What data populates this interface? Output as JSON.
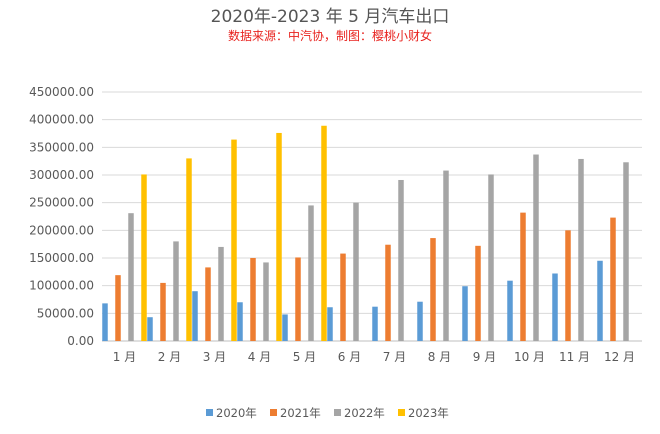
{
  "chart_data": {
    "type": "bar",
    "title": "2020年-2023 年 5 月汽车出口",
    "subtitle": "数据来源：中汽协，制图：樱桃小财女",
    "categories": [
      "1 月",
      "2 月",
      "3 月",
      "4 月",
      "5 月",
      "6 月",
      "7 月",
      "8 月",
      "9 月",
      "10 月",
      "11 月",
      "12 月"
    ],
    "ylim": [
      0,
      450000
    ],
    "yticks": [
      "0.00",
      "50000.00",
      "100000.00",
      "150000.00",
      "200000.00",
      "250000.00",
      "300000.00",
      "350000.00",
      "400000.00",
      "450000.00"
    ],
    "grid": true,
    "legend_position": "bottom",
    "series": [
      {
        "name": "2020年",
        "color": "#5b9bd5",
        "values": [
          68000,
          43000,
          90000,
          70000,
          48000,
          61000,
          62000,
          71000,
          99000,
          109000,
          122000,
          145000
        ]
      },
      {
        "name": "2021年",
        "color": "#ed7d31",
        "values": [
          119000,
          105000,
          133000,
          150000,
          151000,
          158000,
          174000,
          186000,
          172000,
          232000,
          200000,
          223000
        ]
      },
      {
        "name": "2022年",
        "color": "#a5a5a5",
        "values": [
          231000,
          180000,
          170000,
          142000,
          245000,
          250000,
          291000,
          308000,
          301000,
          337000,
          329000,
          323000
        ]
      },
      {
        "name": "2023年",
        "color": "#ffc000",
        "values": [
          301000,
          330000,
          364000,
          376000,
          389000,
          null,
          null,
          null,
          null,
          null,
          null,
          null
        ]
      }
    ]
  }
}
